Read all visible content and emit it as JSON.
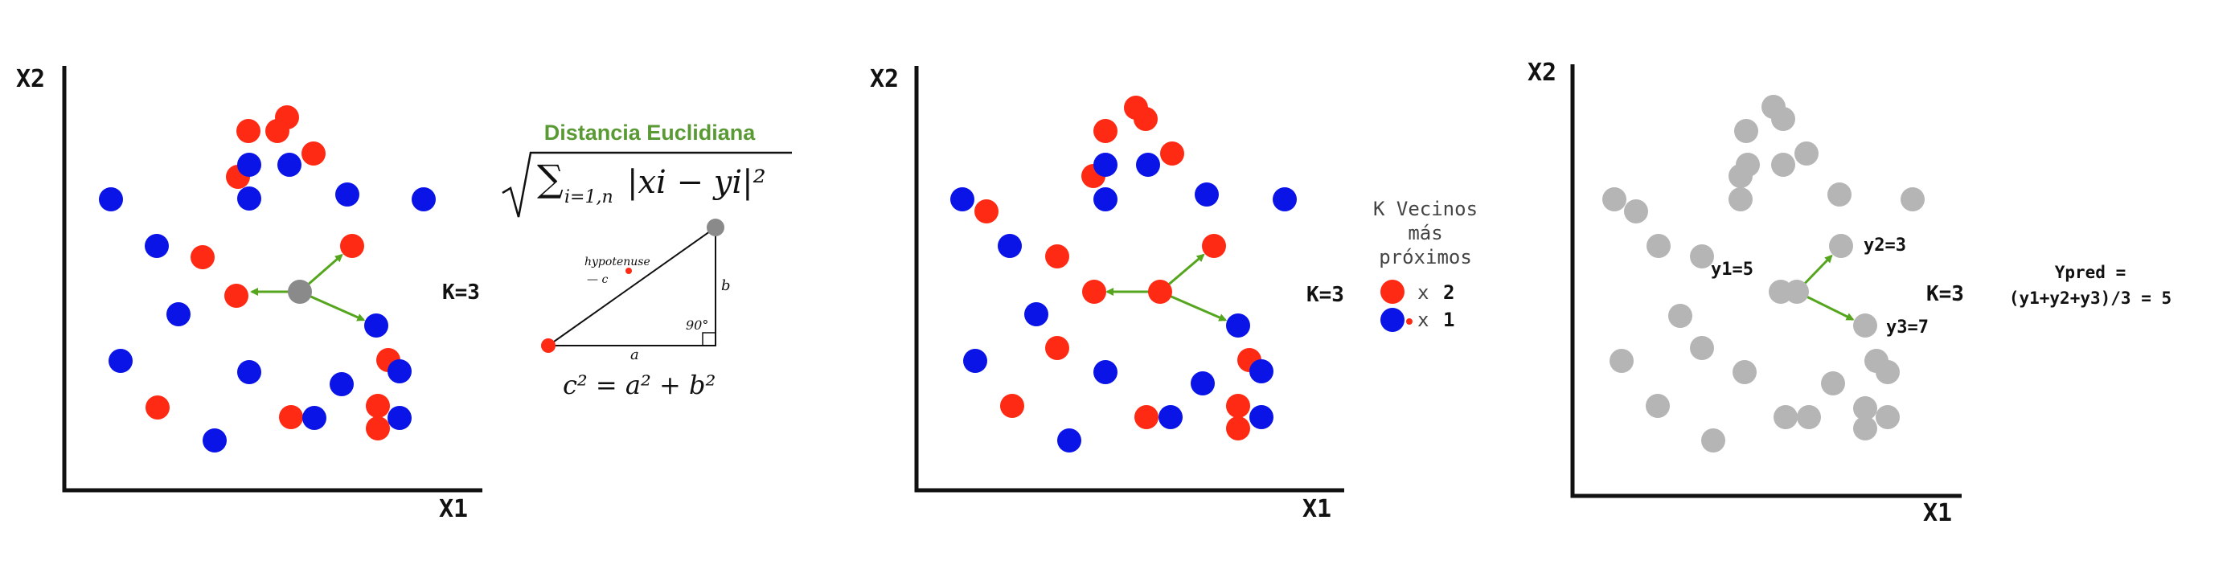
{
  "colors": {
    "red": "#ff2a14",
    "blue": "#0a14e6",
    "gray": "#b5b5b5",
    "query": "#8a8a8a",
    "arrow": "#55a61e",
    "axis": "#111111",
    "title_green": "#5a9a35"
  },
  "panel1": {
    "x2_label": "X2",
    "x1_label": "X1",
    "k_label": "K=3",
    "red_points": [
      [
        345,
        163
      ],
      [
        357,
        146
      ],
      [
        390,
        191
      ],
      [
        309,
        163
      ],
      [
        296,
        220
      ],
      [
        438,
        306
      ],
      [
        252,
        320
      ],
      [
        294,
        368
      ],
      [
        196,
        507
      ],
      [
        362,
        519
      ],
      [
        483,
        448
      ],
      [
        470,
        505
      ],
      [
        470,
        533
      ]
    ],
    "blue_points": [
      [
        138,
        248
      ],
      [
        310,
        205
      ],
      [
        360,
        205
      ],
      [
        310,
        247
      ],
      [
        432,
        242
      ],
      [
        527,
        248
      ],
      [
        195,
        306
      ],
      [
        222,
        391
      ],
      [
        150,
        449
      ],
      [
        310,
        463
      ],
      [
        425,
        478
      ],
      [
        497,
        462
      ],
      [
        391,
        520
      ],
      [
        497,
        520
      ],
      [
        267,
        548
      ],
      [
        468,
        405
      ]
    ],
    "query": [
      373,
      363
    ],
    "neighbors": [
      [
        296,
        363
      ],
      [
        438,
        306
      ],
      [
        468,
        405
      ]
    ]
  },
  "formula": {
    "title": "Distancia Euclidiana",
    "sum_text": "∑",
    "sub_text": "i=1,n",
    "body_text": "|xi − yi|²",
    "hyp_label": "hypotenuse",
    "hyp_sub": "— c",
    "side_a": "a",
    "side_b": "b",
    "angle": "90°",
    "equation": "c² = a² + b²"
  },
  "panel2": {
    "x2_label": "X2",
    "x1_label": "X1",
    "k_label": "K=3",
    "red_points": [
      [
        1413,
        134
      ],
      [
        1425,
        148
      ],
      [
        1375,
        163
      ],
      [
        1458,
        191
      ],
      [
        1360,
        219
      ],
      [
        1227,
        263
      ],
      [
        1315,
        319
      ],
      [
        1510,
        306
      ],
      [
        1361,
        363
      ],
      [
        1315,
        433
      ],
      [
        1554,
        448
      ],
      [
        1259,
        505
      ],
      [
        1426,
        519
      ],
      [
        1540,
        505
      ],
      [
        1540,
        533
      ]
    ],
    "blue_points": [
      [
        1197,
        248
      ],
      [
        1375,
        205
      ],
      [
        1428,
        205
      ],
      [
        1375,
        248
      ],
      [
        1501,
        242
      ],
      [
        1598,
        248
      ],
      [
        1256,
        306
      ],
      [
        1289,
        391
      ],
      [
        1540,
        405
      ],
      [
        1213,
        449
      ],
      [
        1375,
        463
      ],
      [
        1496,
        477
      ],
      [
        1569,
        462
      ],
      [
        1456,
        519
      ],
      [
        1569,
        519
      ],
      [
        1330,
        548
      ]
    ],
    "query": [
      1443,
      363
    ],
    "neighbors": [
      [
        1360,
        363
      ],
      [
        1510,
        306
      ],
      [
        1540,
        405
      ]
    ],
    "legend_title_1": "K Vecinos",
    "legend_title_2": "más",
    "legend_title_3": "próximos",
    "legend_red_prefix": "x",
    "legend_red_count": "2",
    "legend_blue_prefix": "x",
    "legend_blue_count": "1"
  },
  "panel3": {
    "x2_label": "X2",
    "x1_label": "X1",
    "k_label": "K=3",
    "y1_label": "y1=5",
    "y2_label": "y2=3",
    "y3_label": "y3=7",
    "ypred_line1": "Ypred =",
    "ypred_line2": "(y1+y2+y3)/3 = 5",
    "gray_points": [
      [
        2206,
        133
      ],
      [
        2218,
        148
      ],
      [
        2172,
        163
      ],
      [
        2247,
        191
      ],
      [
        2165,
        219
      ],
      [
        2174,
        205
      ],
      [
        2218,
        205
      ],
      [
        2165,
        248
      ],
      [
        2288,
        242
      ],
      [
        2379,
        248
      ],
      [
        2008,
        248
      ],
      [
        2035,
        263
      ],
      [
        2063,
        306
      ],
      [
        2117,
        319
      ],
      [
        2215,
        363
      ],
      [
        2090,
        393
      ],
      [
        2117,
        433
      ],
      [
        2017,
        449
      ],
      [
        2170,
        463
      ],
      [
        2280,
        477
      ],
      [
        2334,
        449
      ],
      [
        2348,
        463
      ],
      [
        2062,
        505
      ],
      [
        2221,
        519
      ],
      [
        2250,
        519
      ],
      [
        2320,
        508
      ],
      [
        2348,
        519
      ],
      [
        2320,
        533
      ],
      [
        2131,
        548
      ],
      [
        2290,
        306
      ],
      [
        2320,
        405
      ]
    ],
    "query": [
      2235,
      363
    ],
    "neighbors": [
      [
        2215,
        363
      ],
      [
        2290,
        306
      ],
      [
        2320,
        405
      ]
    ]
  }
}
